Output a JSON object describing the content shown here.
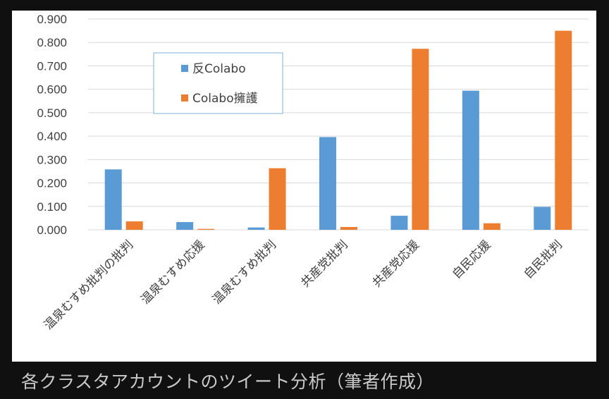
{
  "caption": "各クラスタアカウントのツイート分析（筆者作成）",
  "chart_data": {
    "type": "bar",
    "categories": [
      "温泉むすめ批判の批判",
      "温泉むすめ応援",
      "温泉むすめ批判",
      "共産党批判",
      "共産党応援",
      "自民応援",
      "自民批判"
    ],
    "series": [
      {
        "name": "反Colabo",
        "color": "#5b9bd5",
        "values": [
          0.258,
          0.033,
          0.01,
          0.396,
          0.06,
          0.594,
          0.098
        ]
      },
      {
        "name": "Colabo擁護",
        "color": "#ed7d31",
        "values": [
          0.036,
          0.004,
          0.263,
          0.012,
          0.773,
          0.028,
          0.85
        ]
      }
    ],
    "yticks": [
      "0.000",
      "0.100",
      "0.200",
      "0.300",
      "0.400",
      "0.500",
      "0.600",
      "0.700",
      "0.800",
      "0.900"
    ],
    "ylim": [
      0,
      0.9
    ],
    "grid": true,
    "legend_position": "upper-left",
    "title": "",
    "xlabel": "",
    "ylabel": ""
  }
}
